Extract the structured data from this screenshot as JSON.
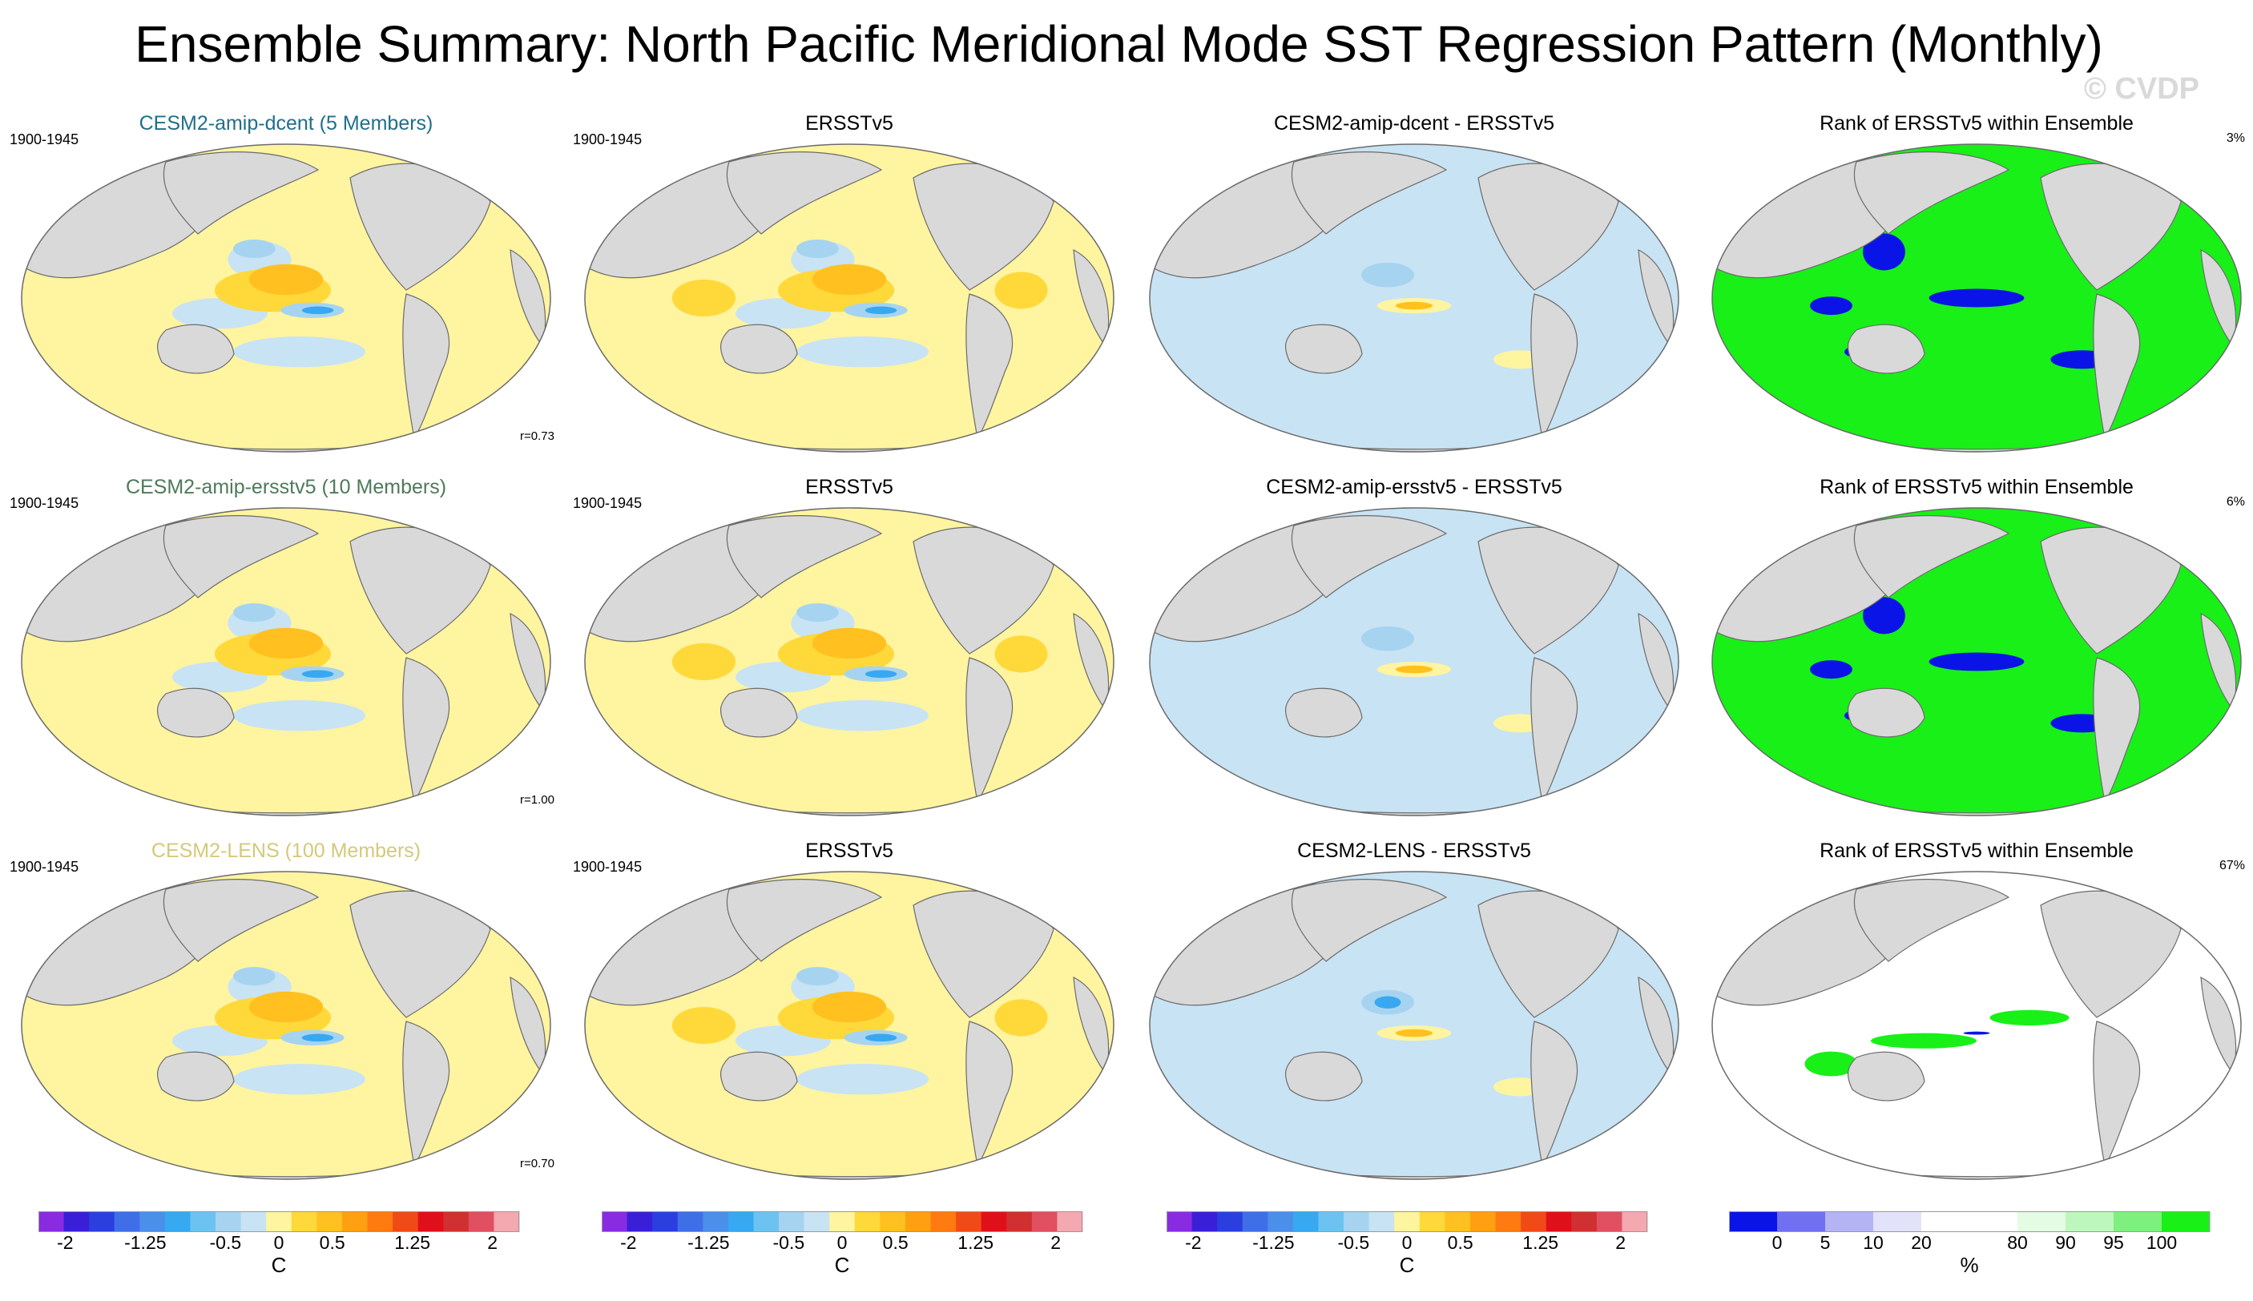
{
  "title": "Ensemble Summary: North Pacific Meridional Mode SST Regression Pattern (Monthly)",
  "watermark": "© CVDP",
  "colors": {
    "title_row1": "#1f6f8b",
    "title_row2": "#4e7a5a",
    "title_row3": "#d4c97a",
    "land": "#d9d9d9",
    "ocean_neutral": "#ffffff"
  },
  "chart_data": {
    "type": "heatmap",
    "rows": [
      {
        "ensemble_title": "CESM2-amip-dcent (5 Members)",
        "period": "1900-1945",
        "pattern_corr": "r=0.73",
        "obs_title": "ERSSTv5",
        "obs_period": "1900-1945",
        "diff_title": "CESM2-amip-dcent - ERSSTv5",
        "rank_title": "Rank of ERSSTv5 within Ensemble",
        "rank_pct": "3%",
        "rank_style": "binary"
      },
      {
        "ensemble_title": "CESM2-amip-ersstv5 (10 Members)",
        "period": "1900-1945",
        "pattern_corr": "r=1.00",
        "obs_title": "ERSSTv5",
        "obs_period": "1900-1945",
        "diff_title": "CESM2-amip-ersstv5 - ERSSTv5",
        "rank_title": "Rank of ERSSTv5 within Ensemble",
        "rank_pct": "6%",
        "rank_style": "binary"
      },
      {
        "ensemble_title": "CESM2-LENS (100 Members)",
        "period": "1900-1945",
        "pattern_corr": "r=0.70",
        "obs_title": "ERSSTv5",
        "obs_period": "1900-1945",
        "diff_title": "CESM2-LENS - ERSSTv5",
        "rank_title": "Rank of ERSSTv5 within Ensemble",
        "rank_pct": "67%",
        "rank_style": "graded"
      }
    ],
    "sst_colorbar": {
      "unit": "C",
      "tick_labels": [
        "-2",
        "-1.25",
        "-0.5",
        "0",
        "0.5",
        "1.25",
        "2"
      ],
      "tick_values": [
        -2,
        -1.25,
        -0.5,
        0,
        0.5,
        1.25,
        2
      ],
      "min": -2.25,
      "max": 2.25,
      "colors": [
        "#8a2be2",
        "#3a1fd8",
        "#2b3fe0",
        "#3f6fe6",
        "#4a8fe8",
        "#38a8f0",
        "#6cc3f2",
        "#a6d4f0",
        "#c8e3f4",
        "#fff4a0",
        "#ffd83a",
        "#ffc020",
        "#ffa010",
        "#ff7a10",
        "#f04a18",
        "#e0101a",
        "#d03030",
        "#e05060",
        "#f4a8b0"
      ]
    },
    "rank_colorbar": {
      "unit": "%",
      "tick_labels": [
        "0",
        "5",
        "10",
        "20",
        "80",
        "90",
        "95",
        "100"
      ],
      "colors": [
        "#0a14e6",
        "#7070f0",
        "#b4b4f4",
        "#e2e2fa",
        "#ffffff",
        "#ffffff",
        "#e4fbe4",
        "#bef7be",
        "#7ef07e",
        "#18f018"
      ]
    }
  }
}
